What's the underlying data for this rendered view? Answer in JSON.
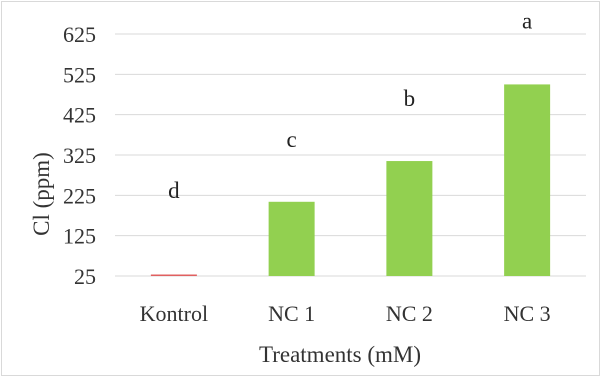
{
  "chart_data": {
    "type": "bar",
    "title": "",
    "xlabel": "Treatments (mM)",
    "ylabel": "Cl (ppm)",
    "categories": [
      "Kontrol",
      "NC 1",
      "NC 2",
      "NC 3"
    ],
    "values": [
      25.5,
      209,
      310,
      500
    ],
    "data_labels": [
      "d",
      "c",
      "b",
      "a"
    ],
    "bar_colors": [
      "#e06060",
      "#92d050",
      "#92d050",
      "#92d050"
    ],
    "ylim": [
      25,
      625
    ],
    "yticks": [
      25,
      125,
      225,
      325,
      425,
      525,
      625
    ],
    "grid": true,
    "grid_color": "#d9d9d9",
    "legend": "none"
  }
}
